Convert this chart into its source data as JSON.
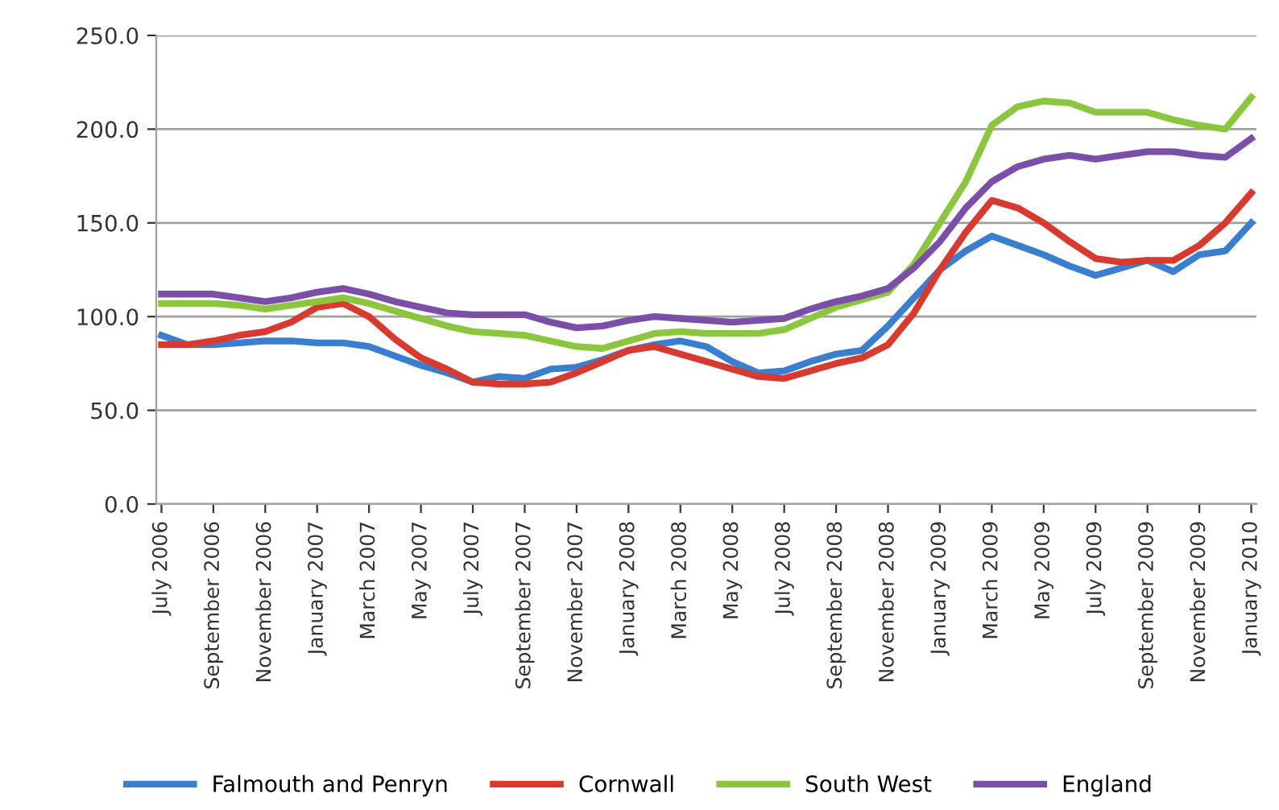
{
  "chart_data": {
    "type": "line",
    "categories": [
      "July 2006",
      null,
      "September 2006",
      null,
      "November 2006",
      null,
      "January 2007",
      null,
      "March 2007",
      null,
      "May 2007",
      null,
      "July 2007",
      null,
      "September 2007",
      null,
      "November 2007",
      null,
      "January 2008",
      null,
      "March 2008",
      null,
      "May 2008",
      null,
      "July 2008",
      null,
      "September 2008",
      null,
      "November 2008",
      null,
      "January 2009",
      null,
      "March 2009",
      null,
      "May 2009",
      null,
      "July 2009",
      null,
      "September 2009",
      null,
      "November 2009",
      null,
      "January 2010"
    ],
    "series": [
      {
        "name": "Falmouth and Penryn",
        "color": "#3a7fcf",
        "values": [
          90,
          85,
          85,
          86,
          87,
          87,
          86,
          86,
          84,
          79,
          74,
          70,
          65,
          68,
          67,
          72,
          73,
          77,
          82,
          85,
          87,
          84,
          76,
          70,
          71,
          76,
          80,
          82,
          95,
          110,
          125,
          135,
          143,
          138,
          133,
          127,
          122,
          126,
          130,
          124,
          133,
          135,
          150
        ]
      },
      {
        "name": "Cornwall",
        "color": "#d93a2f",
        "values": [
          85,
          85,
          87,
          90,
          92,
          97,
          105,
          107,
          100,
          88,
          78,
          72,
          65,
          64,
          64,
          65,
          70,
          76,
          82,
          84,
          80,
          76,
          72,
          68,
          67,
          71,
          75,
          78,
          85,
          102,
          125,
          145,
          162,
          158,
          150,
          140,
          131,
          129,
          130,
          130,
          138,
          150,
          166
        ]
      },
      {
        "name": "South West",
        "color": "#8cc63e",
        "values": [
          107,
          107,
          107,
          106,
          104,
          106,
          108,
          110,
          107,
          103,
          99,
          95,
          92,
          91,
          90,
          87,
          84,
          83,
          87,
          91,
          92,
          91,
          91,
          91,
          93,
          99,
          105,
          109,
          113,
          128,
          150,
          172,
          202,
          212,
          215,
          214,
          209,
          209,
          209,
          205,
          202,
          200,
          217
        ]
      },
      {
        "name": "England",
        "color": "#7b4fa8",
        "values": [
          112,
          112,
          112,
          110,
          108,
          110,
          113,
          115,
          112,
          108,
          105,
          102,
          101,
          101,
          101,
          97,
          94,
          95,
          98,
          100,
          99,
          98,
          97,
          98,
          99,
          104,
          108,
          111,
          115,
          126,
          140,
          158,
          172,
          180,
          184,
          186,
          184,
          186,
          188,
          188,
          186,
          185,
          195
        ]
      }
    ],
    "ylim": [
      0,
      250
    ],
    "yticks": [
      {
        "value": 0,
        "label": "0.0"
      },
      {
        "value": 50,
        "label": "50.0"
      },
      {
        "value": 100,
        "label": "100.0"
      },
      {
        "value": 150,
        "label": "150.0"
      },
      {
        "value": 200,
        "label": "200.0"
      },
      {
        "value": 250,
        "label": "250.0"
      }
    ],
    "grid": "y",
    "legend": "bottom",
    "marker": "none",
    "line_style": "solid"
  }
}
